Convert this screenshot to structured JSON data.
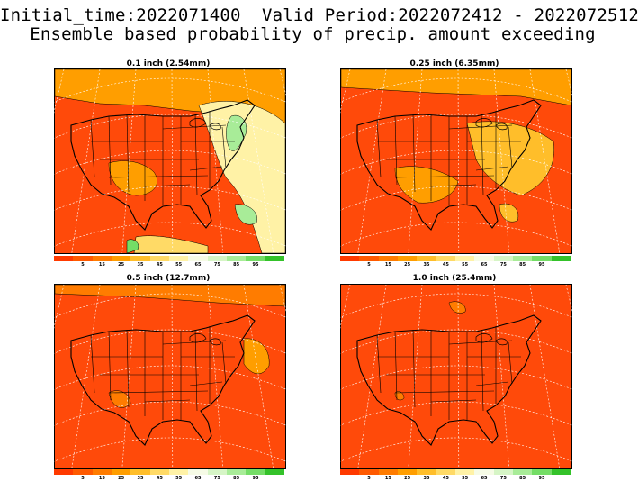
{
  "header": {
    "line1": "Initial_time:2022071400  Valid Period:2022072412 - 2022072512",
    "line2": "Ensemble based probability of precip. amount exceeding"
  },
  "panels": [
    {
      "title": "0.1 inch (2.54mm)",
      "map_variant": "wet"
    },
    {
      "title": "0.25 inch (6.35mm)",
      "map_variant": "moderate"
    },
    {
      "title": "0.5 inch (12.7mm)",
      "map_variant": "dry"
    },
    {
      "title": "1.0 inch (25.4mm)",
      "map_variant": "driest"
    }
  ],
  "colorbar": {
    "labels": [
      "5",
      "15",
      "25",
      "35",
      "45",
      "55",
      "65",
      "75",
      "85",
      "95"
    ],
    "colors": [
      "#ff3a00",
      "#ff5a00",
      "#ff7c00",
      "#ff9e00",
      "#ffbe2a",
      "#ffda66",
      "#fff2a6",
      "#f6fbe6",
      "#d6f5c6",
      "#a8ec98",
      "#74dd66",
      "#34c22a"
    ]
  }
}
